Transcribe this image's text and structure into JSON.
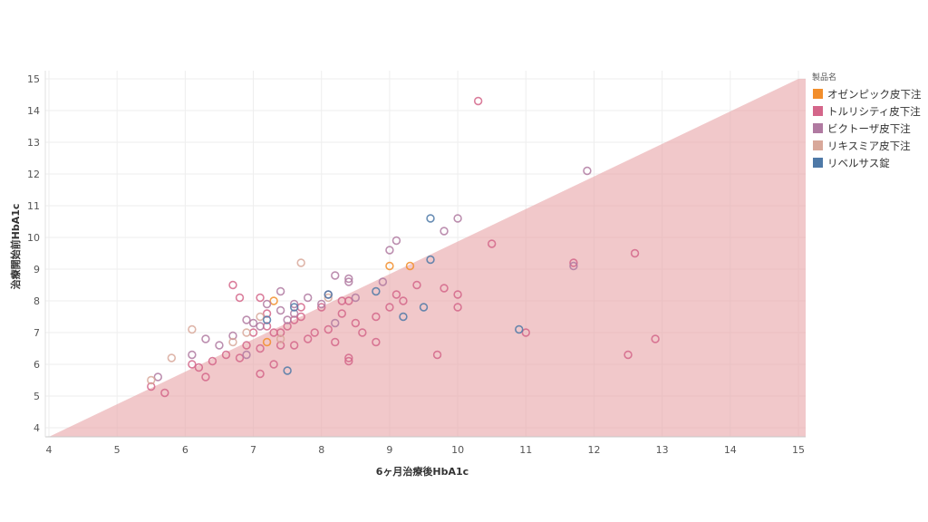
{
  "chart_data": {
    "type": "scatter",
    "xlabel": "6ヶ月治療後HbA1c",
    "ylabel": "治療開始前HbA1c",
    "xlim": [
      4,
      15
    ],
    "ylim": [
      3.7,
      15.2
    ],
    "xticks": [
      4,
      5,
      6,
      7,
      8,
      9,
      10,
      11,
      12,
      13,
      14,
      15
    ],
    "yticks": [
      4,
      5,
      6,
      7,
      8,
      9,
      10,
      11,
      12,
      13,
      14,
      15
    ],
    "reference_region": "y < x shaded",
    "grid": true,
    "legend": {
      "title": "製品名",
      "position": "right"
    },
    "series": [
      {
        "name": "オゼンピック皮下注",
        "color": "#f28e2b",
        "points": [
          [
            7.2,
            6.7
          ],
          [
            7.3,
            8.0
          ],
          [
            9.0,
            9.1
          ],
          [
            9.3,
            9.1
          ]
        ]
      },
      {
        "name": "トルリシティ皮下注",
        "color": "#d4668a",
        "points": [
          [
            5.5,
            5.3
          ],
          [
            5.7,
            5.1
          ],
          [
            6.1,
            6.0
          ],
          [
            6.2,
            5.9
          ],
          [
            6.3,
            5.6
          ],
          [
            6.4,
            6.1
          ],
          [
            6.6,
            6.3
          ],
          [
            6.8,
            6.2
          ],
          [
            6.9,
            6.6
          ],
          [
            7.0,
            7.0
          ],
          [
            7.1,
            6.5
          ],
          [
            7.1,
            5.7
          ],
          [
            7.2,
            7.2
          ],
          [
            7.3,
            6.0
          ],
          [
            7.4,
            7.0
          ],
          [
            7.4,
            6.6
          ],
          [
            7.5,
            7.2
          ],
          [
            7.6,
            6.6
          ],
          [
            7.7,
            7.5
          ],
          [
            7.7,
            7.8
          ],
          [
            7.8,
            6.8
          ],
          [
            7.9,
            7.0
          ],
          [
            8.0,
            7.8
          ],
          [
            8.1,
            7.1
          ],
          [
            8.2,
            6.7
          ],
          [
            8.3,
            7.6
          ],
          [
            8.4,
            6.2
          ],
          [
            8.4,
            6.1
          ],
          [
            8.5,
            7.3
          ],
          [
            8.6,
            7.0
          ],
          [
            8.8,
            6.7
          ],
          [
            8.8,
            7.5
          ],
          [
            9.0,
            7.8
          ],
          [
            9.1,
            8.2
          ],
          [
            9.2,
            8.0
          ],
          [
            9.4,
            8.5
          ],
          [
            9.7,
            6.3
          ],
          [
            9.8,
            8.4
          ],
          [
            10.0,
            7.8
          ],
          [
            10.0,
            8.2
          ],
          [
            10.5,
            9.8
          ],
          [
            10.3,
            14.3
          ],
          [
            11.0,
            7.0
          ],
          [
            11.7,
            9.2
          ],
          [
            12.6,
            9.5
          ],
          [
            12.9,
            6.8
          ],
          [
            12.5,
            6.3
          ],
          [
            8.3,
            8.0
          ],
          [
            8.4,
            8.0
          ],
          [
            7.3,
            7.0
          ],
          [
            7.6,
            7.4
          ],
          [
            6.7,
            8.5
          ],
          [
            6.8,
            8.1
          ],
          [
            7.1,
            8.1
          ],
          [
            7.2,
            7.6
          ]
        ]
      },
      {
        "name": "ビクトーザ皮下注",
        "color": "#b07aa1",
        "points": [
          [
            5.6,
            5.6
          ],
          [
            6.1,
            6.3
          ],
          [
            6.3,
            6.8
          ],
          [
            6.5,
            6.6
          ],
          [
            6.7,
            6.9
          ],
          [
            6.9,
            7.4
          ],
          [
            7.0,
            7.3
          ],
          [
            7.1,
            7.2
          ],
          [
            7.2,
            7.9
          ],
          [
            7.4,
            8.3
          ],
          [
            7.5,
            7.4
          ],
          [
            7.6,
            7.6
          ],
          [
            7.8,
            8.1
          ],
          [
            8.0,
            7.9
          ],
          [
            8.1,
            8.2
          ],
          [
            8.2,
            8.8
          ],
          [
            8.4,
            8.7
          ],
          [
            8.5,
            8.1
          ],
          [
            8.9,
            8.6
          ],
          [
            9.0,
            9.6
          ],
          [
            9.1,
            9.9
          ],
          [
            9.8,
            10.2
          ],
          [
            10.0,
            10.6
          ],
          [
            11.9,
            12.1
          ],
          [
            11.7,
            9.1
          ],
          [
            8.4,
            8.6
          ],
          [
            8.2,
            7.3
          ],
          [
            7.4,
            7.7
          ],
          [
            6.9,
            6.3
          ],
          [
            7.6,
            7.9
          ]
        ]
      },
      {
        "name": "リキスミア皮下注",
        "color": "#d8a89a",
        "points": [
          [
            5.5,
            5.5
          ],
          [
            5.8,
            6.2
          ],
          [
            6.1,
            7.1
          ],
          [
            6.7,
            6.7
          ],
          [
            6.9,
            7.0
          ],
          [
            7.1,
            7.5
          ],
          [
            7.7,
            9.2
          ],
          [
            7.4,
            6.8
          ],
          [
            8.1,
            8.1
          ]
        ]
      },
      {
        "name": "リベルサス錠",
        "color": "#4e79a7",
        "points": [
          [
            7.2,
            7.4
          ],
          [
            7.5,
            5.8
          ],
          [
            7.6,
            7.8
          ],
          [
            8.1,
            8.2
          ],
          [
            8.8,
            8.3
          ],
          [
            9.2,
            7.5
          ],
          [
            9.5,
            7.8
          ],
          [
            9.6,
            9.3
          ],
          [
            9.6,
            10.6
          ],
          [
            10.9,
            7.1
          ]
        ]
      }
    ]
  }
}
